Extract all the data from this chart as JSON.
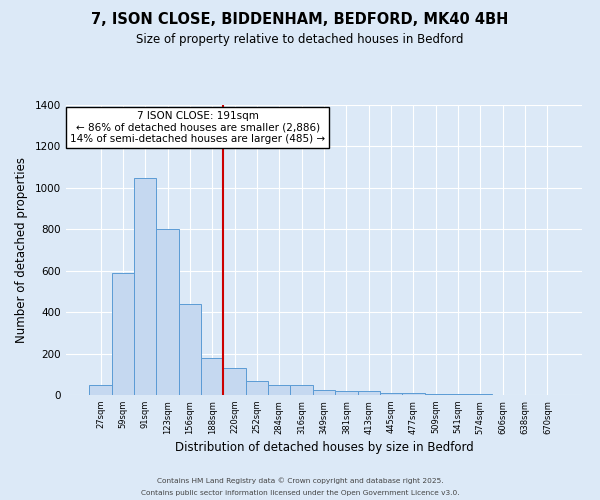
{
  "title": "7, ISON CLOSE, BIDDENHAM, BEDFORD, MK40 4BH",
  "subtitle": "Size of property relative to detached houses in Bedford",
  "xlabel": "Distribution of detached houses by size in Bedford",
  "ylabel": "Number of detached properties",
  "bin_labels": [
    "27sqm",
    "59sqm",
    "91sqm",
    "123sqm",
    "156sqm",
    "188sqm",
    "220sqm",
    "252sqm",
    "284sqm",
    "316sqm",
    "349sqm",
    "381sqm",
    "413sqm",
    "445sqm",
    "477sqm",
    "509sqm",
    "541sqm",
    "574sqm",
    "606sqm",
    "638sqm",
    "670sqm"
  ],
  "bar_values": [
    50,
    590,
    1050,
    800,
    440,
    180,
    130,
    70,
    50,
    50,
    25,
    20,
    20,
    10,
    8,
    5,
    5,
    3,
    2,
    0,
    2
  ],
  "bar_color": "#c5d8f0",
  "bar_edge_color": "#5b9bd5",
  "annotation_title": "7 ISON CLOSE: 191sqm",
  "annotation_line1": "← 86% of detached houses are smaller (2,886)",
  "annotation_line2": "14% of semi-detached houses are larger (485) →",
  "annotation_box_color": "#ffffff",
  "annotation_box_edge": "#000000",
  "vline_color": "#cc0000",
  "vline_x_index": 5.5,
  "ylim": [
    0,
    1400
  ],
  "yticks": [
    0,
    200,
    400,
    600,
    800,
    1000,
    1200,
    1400
  ],
  "bg_color": "#dce9f7",
  "grid_color": "#ffffff",
  "footer1": "Contains HM Land Registry data © Crown copyright and database right 2025.",
  "footer2": "Contains public sector information licensed under the Open Government Licence v3.0."
}
